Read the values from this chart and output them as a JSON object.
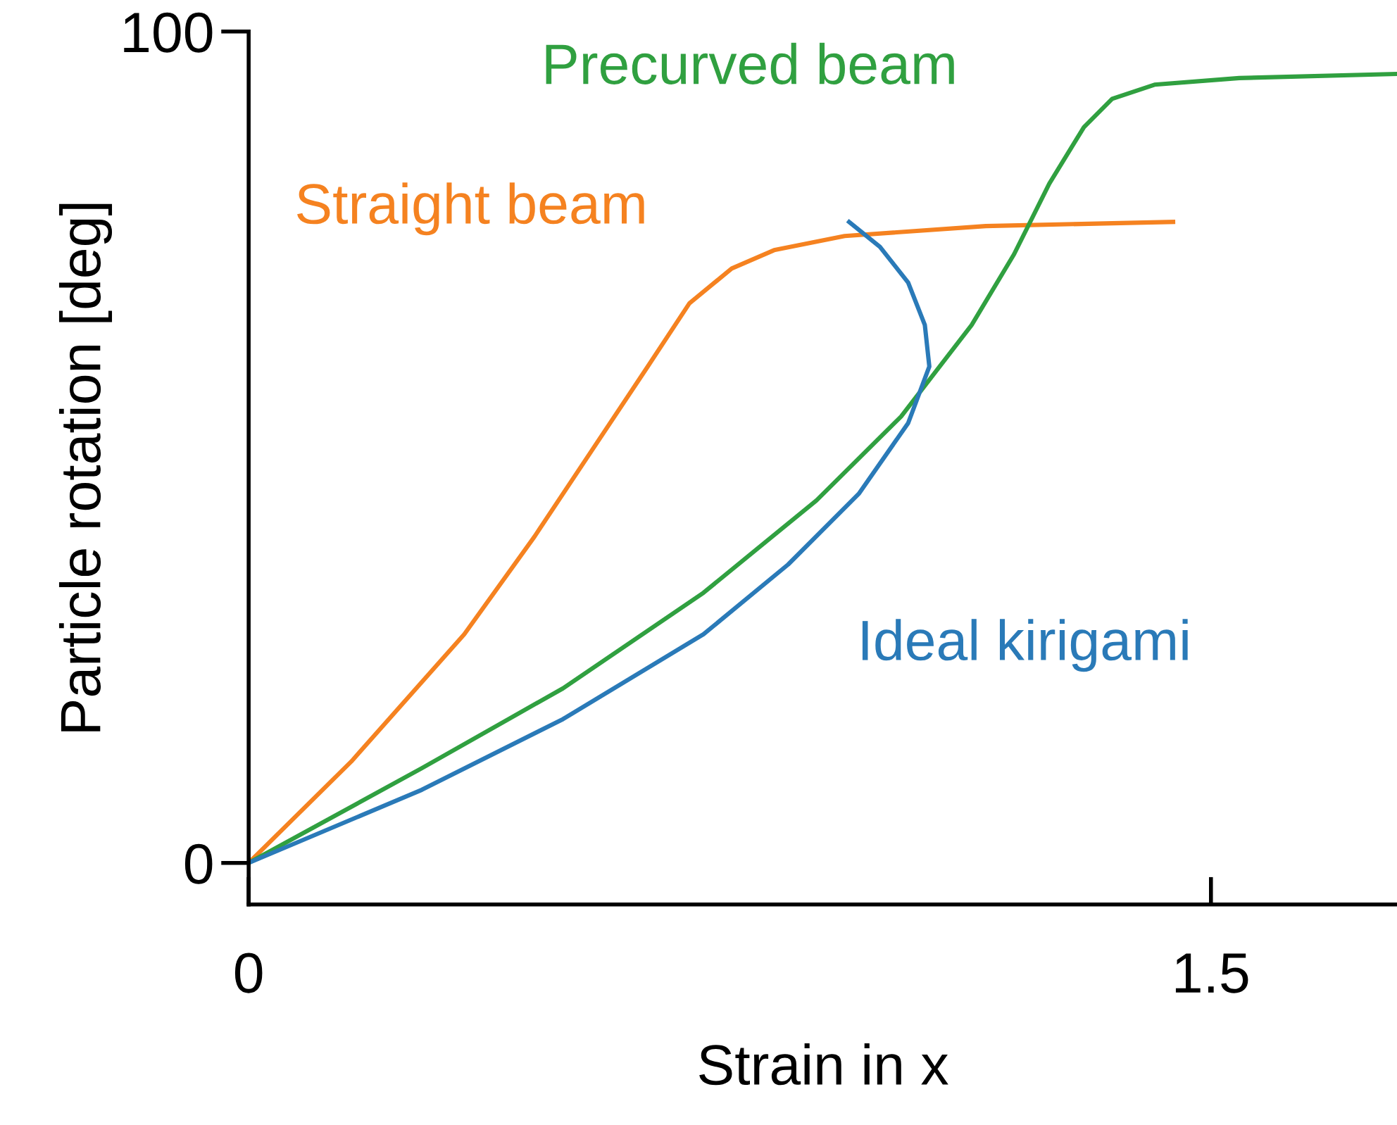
{
  "chart_data": {
    "type": "line",
    "xlabel": "Strain in x",
    "ylabel": "Particle rotation [deg]",
    "xlim": [
      0,
      1.79
    ],
    "ylim": [
      -5,
      100
    ],
    "xticks": [
      0,
      1.5
    ],
    "yticks": [
      0,
      100
    ],
    "grid": false,
    "legend": false,
    "marker": "none",
    "line_style": "solid",
    "series": [
      {
        "name": "Straight beam",
        "color": "#f58220",
        "x": [
          0,
          0.16,
          0.336,
          0.446,
          0.534,
          0.622,
          0.687,
          0.753,
          0.819,
          0.929,
          1.149,
          1.441
        ],
        "values": [
          0,
          12.2,
          27.5,
          39.3,
          49.5,
          59.7,
          67.3,
          71.5,
          73.7,
          75.4,
          76.6,
          77.1
        ]
      },
      {
        "name": "Precurved beam",
        "color": "#30a040",
        "x": [
          0,
          0.27,
          0.49,
          0.709,
          0.885,
          1.017,
          1.127,
          1.193,
          1.248,
          1.302,
          1.346,
          1.412,
          1.544,
          1.79
        ],
        "values": [
          0,
          11.4,
          21.0,
          32.5,
          43.6,
          53.7,
          64.7,
          73.2,
          81.7,
          88.5,
          91.9,
          93.6,
          94.4,
          94.9
        ]
      },
      {
        "name": "Ideal kirigami",
        "color": "#2a7ab8",
        "x": [
          0,
          0.27,
          0.49,
          0.709,
          0.841,
          0.951,
          1.028,
          1.061,
          1.054,
          1.028,
          0.984,
          0.936
        ],
        "values": [
          0,
          8.8,
          17.3,
          27.5,
          35.9,
          44.4,
          52.9,
          59.7,
          64.7,
          69.8,
          74.1,
          77.1
        ]
      }
    ]
  }
}
